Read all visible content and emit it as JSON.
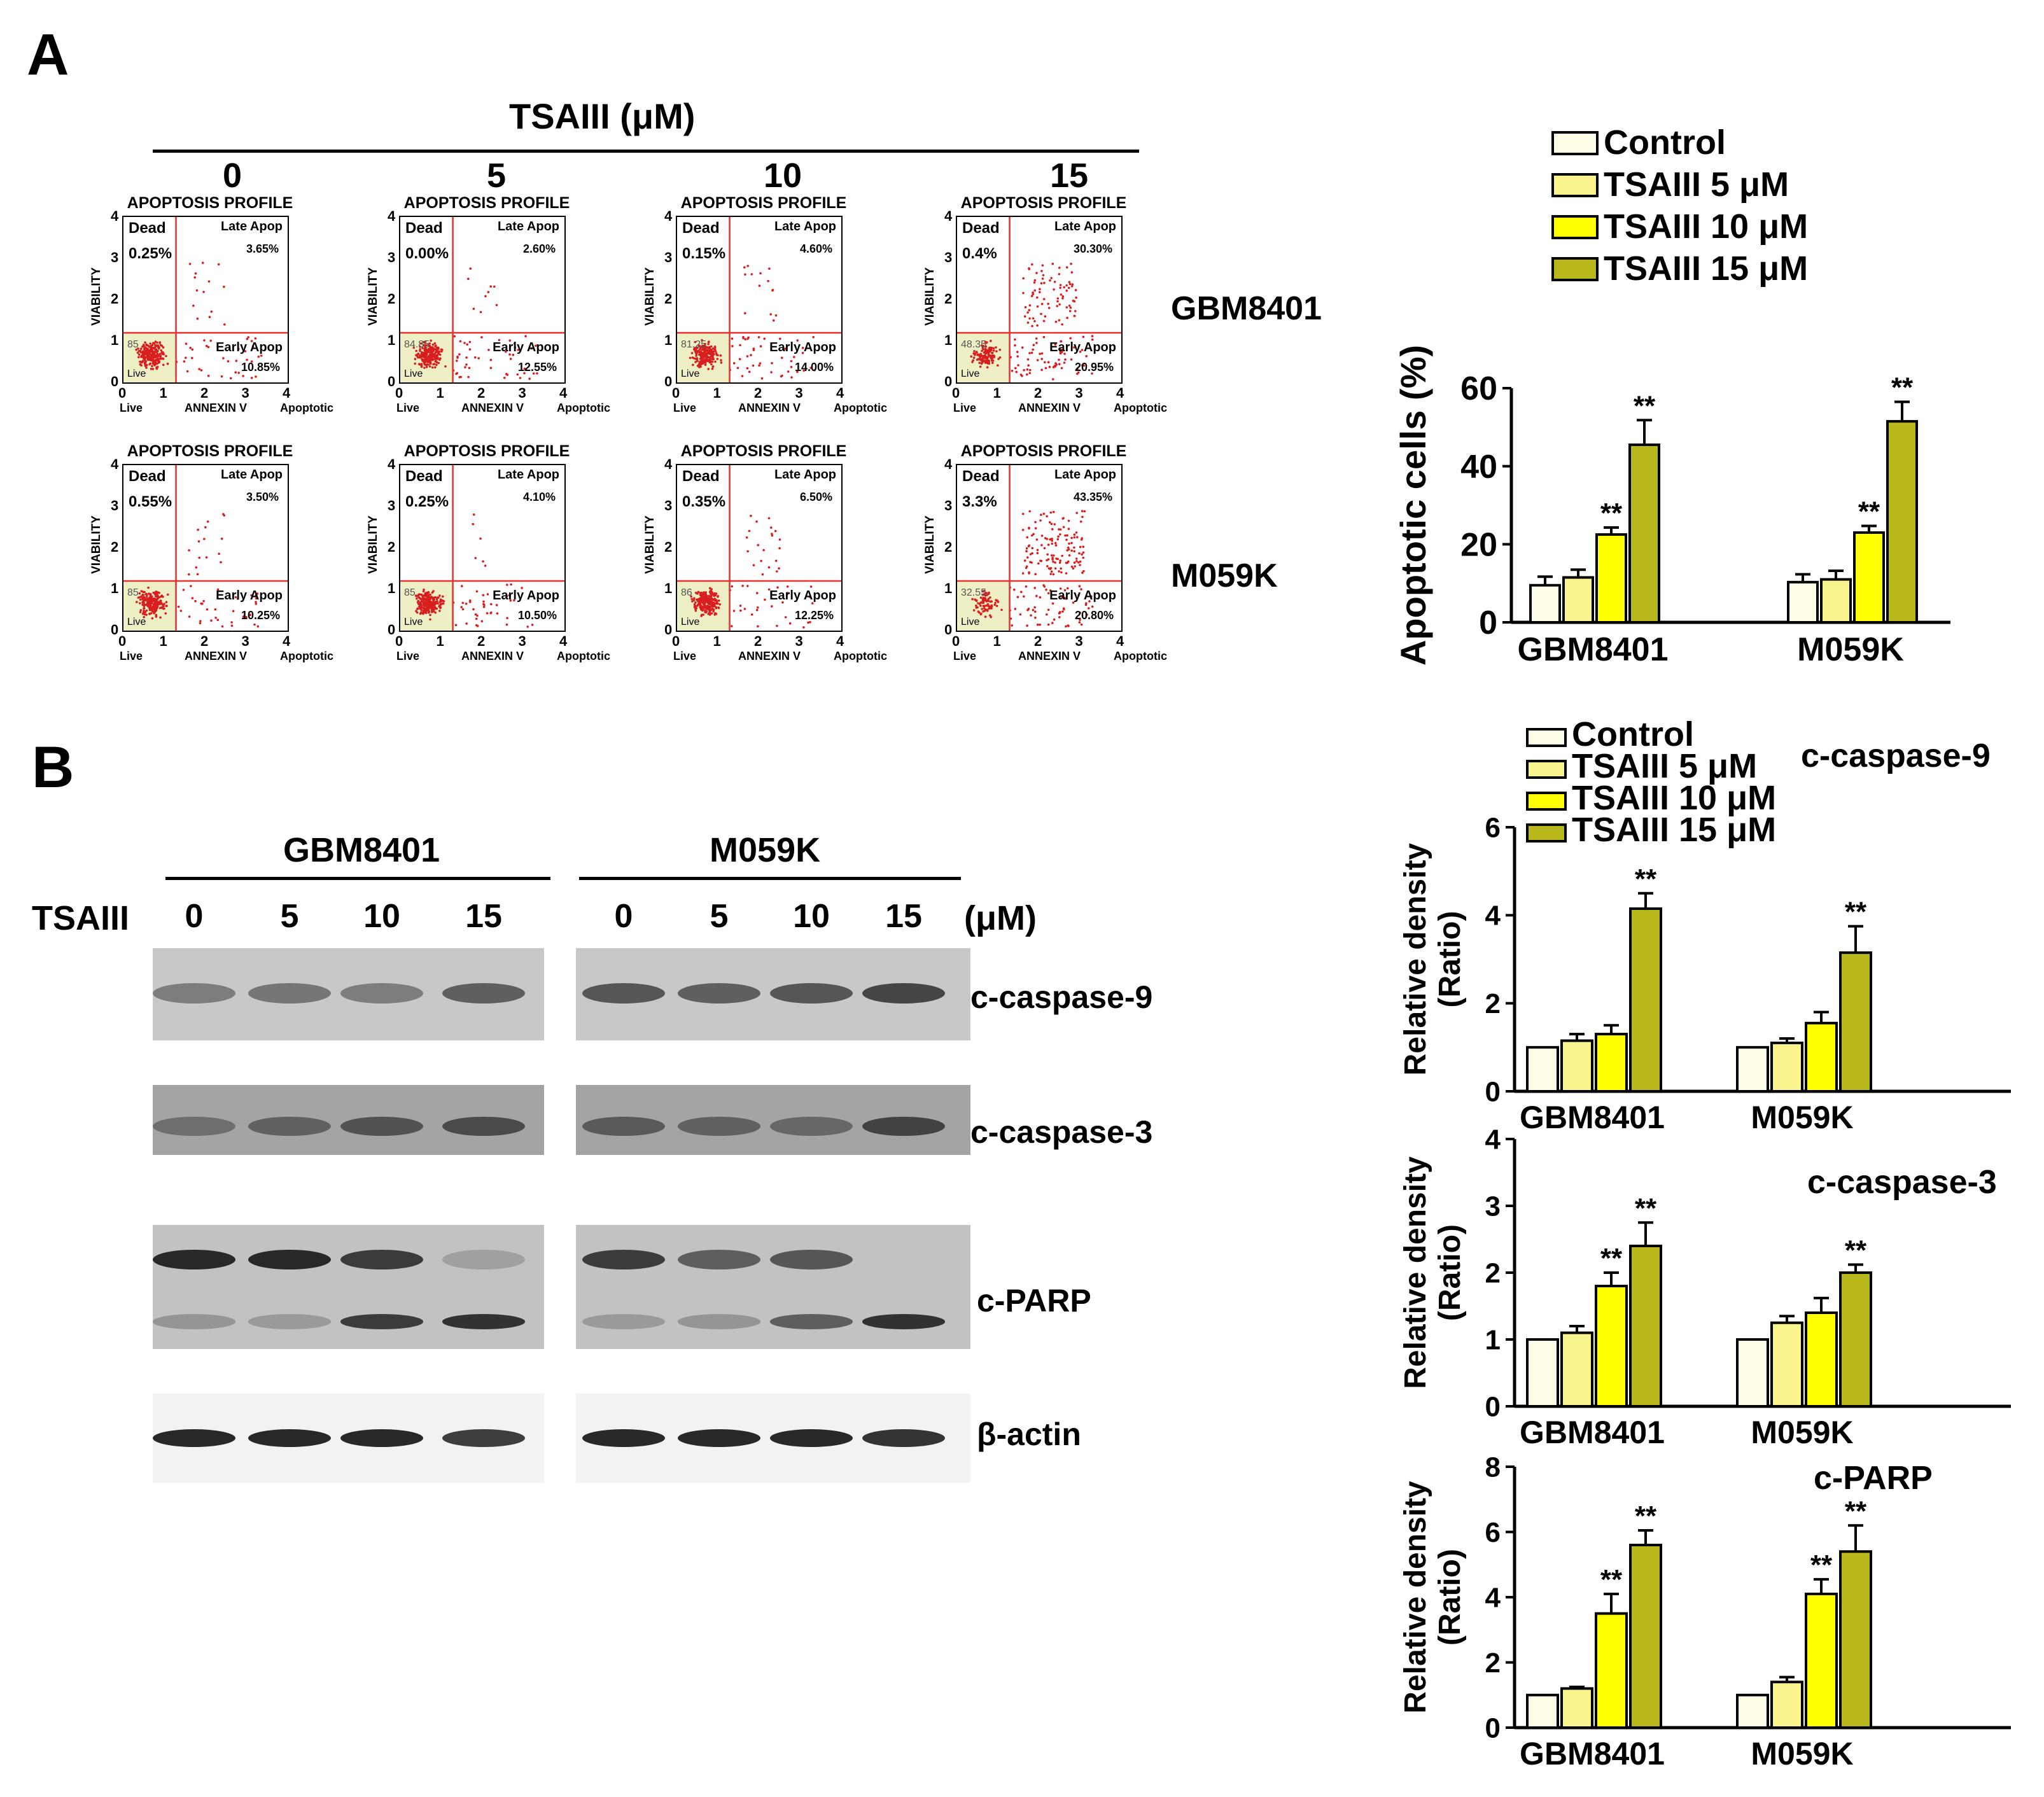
{
  "panel_a": {
    "letter": "A",
    "header": "TSAIII (μM)",
    "concentrations": [
      "0",
      "5",
      "10",
      "15"
    ],
    "cell_lines": [
      "GBM8401",
      "M059K"
    ],
    "flow_plots": {
      "title": "APOPTOSIS PROFILE",
      "y_label": "VIABILITY",
      "x_label": "ANNEXIN V",
      "x_left": "Live",
      "x_right": "Apoptotic",
      "quad_dead": "Dead",
      "quad_late": "Late Apop",
      "quad_early": "Early Apop",
      "quad_live": "Live",
      "y_ticks": [
        "4",
        "3",
        "2",
        "1",
        "0"
      ],
      "x_ticks": [
        "0",
        "1",
        "2",
        "3",
        "4"
      ],
      "rows": [
        [
          {
            "dead": "0.25%",
            "late": "3.65%",
            "early": "10.85%",
            "live": "85"
          },
          {
            "dead": "0.00%",
            "late": "2.60%",
            "early": "12.55%",
            "live": "84.85"
          },
          {
            "dead": "0.15%",
            "late": "4.60%",
            "early": "14.00%",
            "live": "81.25"
          },
          {
            "dead": "0.4%",
            "late": "30.30%",
            "early": "20.95%",
            "live": "48.35"
          }
        ],
        [
          {
            "dead": "0.55%",
            "late": "3.50%",
            "early": "10.25%",
            "live": "85"
          },
          {
            "dead": "0.25%",
            "late": "4.10%",
            "early": "10.50%",
            "live": "85"
          },
          {
            "dead": "0.35%",
            "late": "6.50%",
            "early": "12.25%",
            "live": "86"
          },
          {
            "dead": "3.3%",
            "late": "43.35%",
            "early": "20.80%",
            "live": "32.55"
          }
        ]
      ]
    }
  },
  "panel_b": {
    "letter": "B",
    "treatment_label": "TSAIII",
    "unit": "(μM)",
    "cell_lines": [
      "GBM8401",
      "M059K"
    ],
    "lanes": [
      "0",
      "5",
      "10",
      "15",
      "0",
      "5",
      "10",
      "15"
    ],
    "proteins": [
      "c-caspase-9",
      "c-caspase-3",
      "c-PARP",
      "β-actin"
    ]
  },
  "colors": {
    "control": "#fefde8",
    "tsa5": "#f9f48e",
    "tsa10": "#ffff00",
    "tsa15": "#b8b81c",
    "quad_line": "#e53030",
    "dot": "#d81e1e",
    "live_fill": "#efefc6"
  },
  "chart_data": [
    {
      "type": "bar",
      "ylabel": "Apoptotic cells (%)",
      "categories": [
        "GBM8401",
        "M059K"
      ],
      "legend": [
        "Control",
        "TSAIII 5 μM",
        "TSAIII 10 μM",
        "TSAIII 15 μM"
      ],
      "series": [
        {
          "name": "Control",
          "values": [
            9.5,
            10.3
          ],
          "errors": [
            2.2,
            2.0
          ]
        },
        {
          "name": "TSAIII 5 μM",
          "values": [
            11.5,
            11.0
          ],
          "errors": [
            2.0,
            2.2
          ]
        },
        {
          "name": "TSAIII 10 μM",
          "values": [
            22.5,
            23.0
          ],
          "errors": [
            1.8,
            1.7
          ]
        },
        {
          "name": "TSAIII 15 μM",
          "values": [
            45.5,
            51.5
          ],
          "errors": [
            6.3,
            5.0
          ]
        }
      ],
      "significance": [
        [
          "",
          "",
          "**",
          "**"
        ],
        [
          "",
          "",
          "**",
          "**"
        ]
      ],
      "ylim": [
        0,
        60
      ],
      "yticks": [
        "0",
        "20",
        "40",
        "60"
      ]
    },
    {
      "type": "bar",
      "title": "c-caspase-9",
      "ylabel": "Relative density (Ratio)",
      "categories": [
        "GBM8401",
        "M059K"
      ],
      "legend": [
        "Control",
        "TSAIII   5 μM",
        "TSAIII 10 μM",
        "TSAIII 15 μM"
      ],
      "series": [
        {
          "name": "Control",
          "values": [
            1.0,
            1.0
          ],
          "errors": [
            0,
            0
          ]
        },
        {
          "name": "TSAIII 5 μM",
          "values": [
            1.15,
            1.1
          ],
          "errors": [
            0.15,
            0.1
          ]
        },
        {
          "name": "TSAIII 10 μM",
          "values": [
            1.3,
            1.55
          ],
          "errors": [
            0.2,
            0.25
          ]
        },
        {
          "name": "TSAIII 15 μM",
          "values": [
            4.15,
            3.15
          ],
          "errors": [
            0.35,
            0.6
          ]
        }
      ],
      "significance": [
        [
          "",
          "",
          "",
          "**"
        ],
        [
          "",
          "",
          "",
          "**"
        ]
      ],
      "ylim": [
        0,
        6
      ],
      "yticks": [
        "0",
        "2",
        "4",
        "6"
      ]
    },
    {
      "type": "bar",
      "title": "c-caspase-3",
      "ylabel": "Relative density (Ratio)",
      "categories": [
        "GBM8401",
        "M059K"
      ],
      "series": [
        {
          "name": "Control",
          "values": [
            1.0,
            1.0
          ],
          "errors": [
            0,
            0
          ]
        },
        {
          "name": "TSAIII 5 μM",
          "values": [
            1.1,
            1.25
          ],
          "errors": [
            0.1,
            0.1
          ]
        },
        {
          "name": "TSAIII 10 μM",
          "values": [
            1.8,
            1.4
          ],
          "errors": [
            0.2,
            0.22
          ]
        },
        {
          "name": "TSAIII 15 μM",
          "values": [
            2.4,
            2.0
          ],
          "errors": [
            0.35,
            0.12
          ]
        }
      ],
      "significance": [
        [
          "",
          "",
          "**",
          "**"
        ],
        [
          "",
          "",
          "",
          "**"
        ]
      ],
      "ylim": [
        0,
        4
      ],
      "yticks": [
        "0",
        "1",
        "2",
        "3",
        "4"
      ]
    },
    {
      "type": "bar",
      "title": "c-PARP",
      "ylabel": "Relative density (Ratio)",
      "categories": [
        "GBM8401",
        "M059K"
      ],
      "series": [
        {
          "name": "Control",
          "values": [
            1.0,
            1.0
          ],
          "errors": [
            0,
            0
          ]
        },
        {
          "name": "TSAIII 5 μM",
          "values": [
            1.2,
            1.4
          ],
          "errors": [
            0.05,
            0.15
          ]
        },
        {
          "name": "TSAIII 10 μM",
          "values": [
            3.5,
            4.1
          ],
          "errors": [
            0.6,
            0.45
          ]
        },
        {
          "name": "TSAIII 15 μM",
          "values": [
            5.6,
            5.4
          ],
          "errors": [
            0.45,
            0.8
          ]
        }
      ],
      "significance": [
        [
          "",
          "",
          "**",
          "**"
        ],
        [
          "",
          "",
          "**",
          "**"
        ]
      ],
      "ylim": [
        0,
        8
      ],
      "yticks": [
        "0",
        "2",
        "4",
        "6",
        "8"
      ]
    }
  ]
}
